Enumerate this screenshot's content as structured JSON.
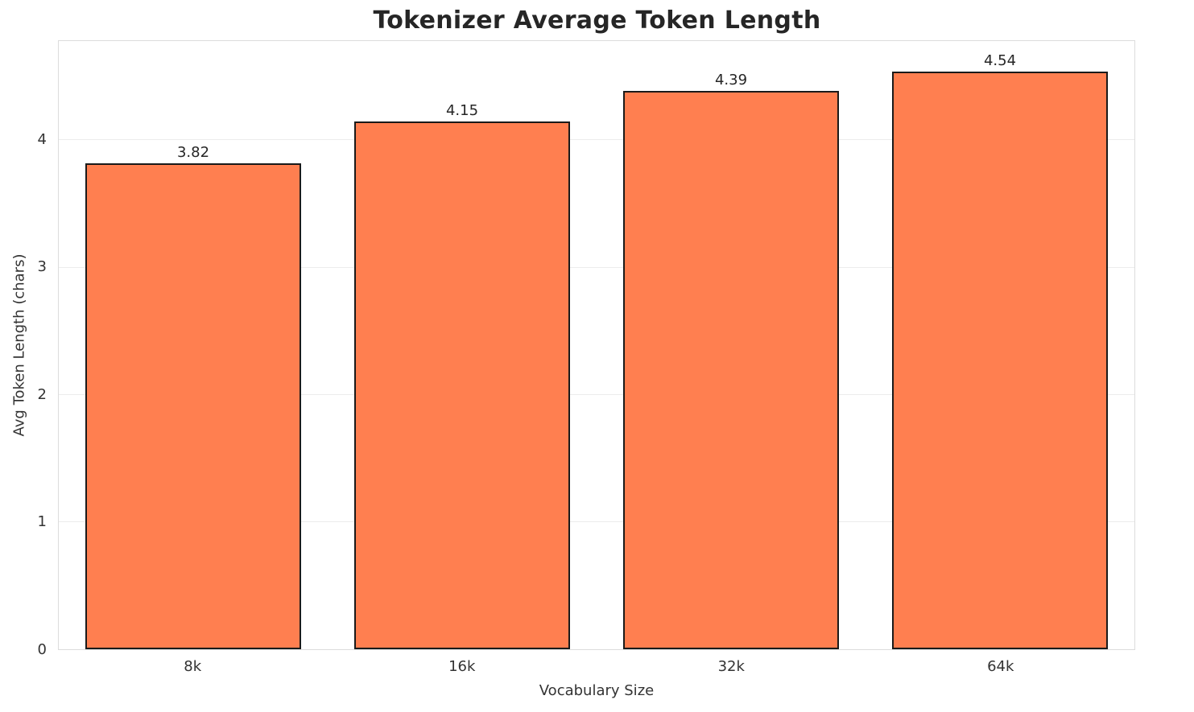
{
  "chart_data": {
    "type": "bar",
    "title": "Tokenizer Average Token Length",
    "xlabel": "Vocabulary Size",
    "ylabel": "Avg Token Length (chars)",
    "categories": [
      "8k",
      "16k",
      "32k",
      "64k"
    ],
    "values": [
      3.82,
      4.15,
      4.39,
      4.54
    ],
    "value_labels": [
      "3.82",
      "4.15",
      "4.39",
      "4.54"
    ],
    "ylim": [
      0,
      4.78
    ],
    "yticks": [
      0,
      1,
      2,
      3,
      4
    ],
    "grid": true,
    "legend": "none",
    "bar_color": "#FF7F50",
    "bar_edge_color": "#1a1a1a",
    "grid_color": "#ececec",
    "text_color": "#262626"
  }
}
